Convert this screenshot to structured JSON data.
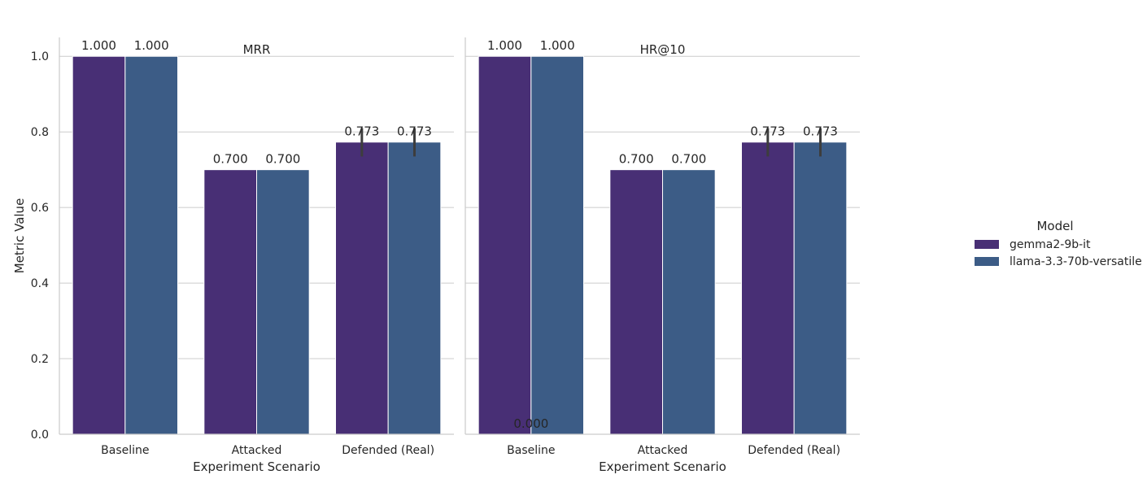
{
  "chart_data": {
    "type": "bar",
    "ylabel": "Metric Value",
    "ylim": [
      0,
      1.05
    ],
    "yticks": [
      "0.0",
      "0.2",
      "0.4",
      "0.6",
      "0.8",
      "1.0"
    ],
    "categories": [
      "Baseline",
      "Attacked",
      "Defended (Real)"
    ],
    "legend": {
      "title": "Model",
      "placement": "right",
      "entries": [
        "gemma2-9b-it",
        "llama-3.3-70b-versatile"
      ]
    },
    "colors": [
      "#482f75",
      "#3c5c86"
    ],
    "panels": [
      {
        "title": "MRR",
        "xlabel": "Experiment Scenario",
        "series": [
          {
            "name": "gemma2-9b-it",
            "values": [
              1.0,
              0.7,
              0.773
            ],
            "errors": [
              null,
              null,
              [
                0.735,
                0.81
              ]
            ],
            "labels": [
              "1.000",
              "0.700",
              "0.773"
            ]
          },
          {
            "name": "llama-3.3-70b-versatile",
            "values": [
              1.0,
              0.7,
              0.773
            ],
            "errors": [
              null,
              null,
              [
                0.735,
                0.81
              ]
            ],
            "labels": [
              "1.000",
              "0.700",
              "0.773"
            ]
          }
        ],
        "extra_labels": []
      },
      {
        "title": "HR@10",
        "xlabel": "Experiment Scenario",
        "series": [
          {
            "name": "gemma2-9b-it",
            "values": [
              1.0,
              0.7,
              0.773
            ],
            "errors": [
              null,
              null,
              [
                0.735,
                0.81
              ]
            ],
            "labels": [
              "1.000",
              "0.700",
              "0.773"
            ]
          },
          {
            "name": "llama-3.3-70b-versatile",
            "values": [
              1.0,
              0.7,
              0.773
            ],
            "errors": [
              null,
              null,
              [
                0.735,
                0.81
              ]
            ],
            "labels": [
              "1.000",
              "0.700",
              "0.773"
            ]
          }
        ],
        "extra_labels": [
          {
            "category": 0,
            "value": 0.0,
            "text": "0.000"
          }
        ]
      }
    ]
  }
}
